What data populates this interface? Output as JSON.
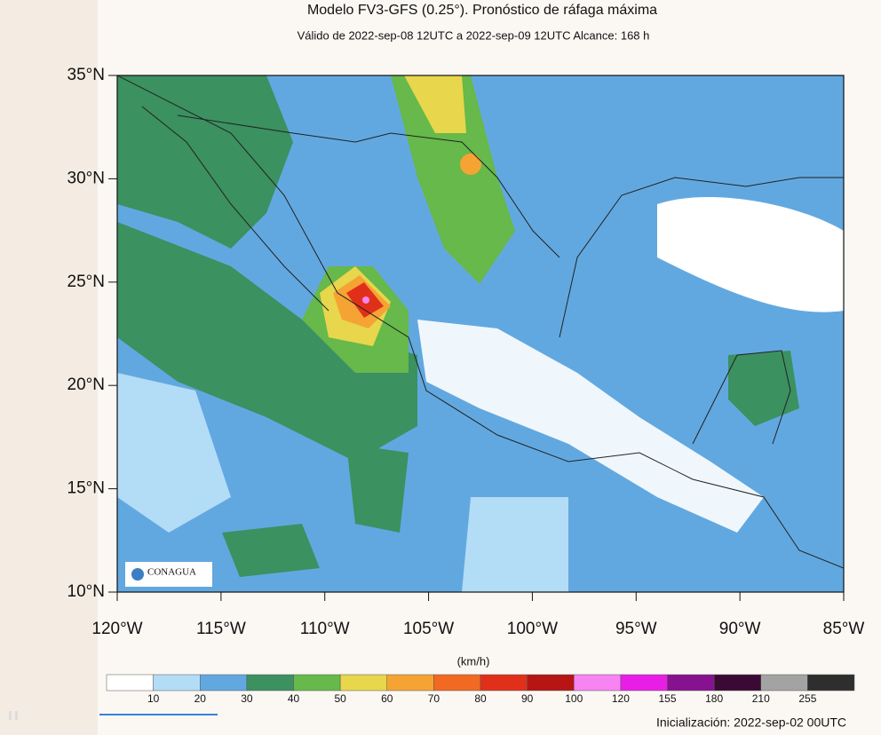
{
  "header": {
    "title": "Modelo FV3-GFS (0.25°). Pronóstico de ráfaga máxima",
    "subtitle": "Válido de 2022-sep-08 12UTC a 2022-sep-09 12UTC    Alcance: 168 h"
  },
  "map": {
    "lat_labels": [
      "35°N",
      "30°N",
      "25°N",
      "20°N",
      "15°N",
      "10°N"
    ],
    "lon_labels": [
      "120°W",
      "115°W",
      "110°W",
      "105°W",
      "100°W",
      "95°W",
      "90°W",
      "85°W"
    ],
    "logo": "CONAGUA"
  },
  "colorbar": {
    "unit": "(km/h)",
    "colors": [
      "#ffffff",
      "#b3dcf6",
      "#62a8e0",
      "#3b9160",
      "#66b94a",
      "#e8d64c",
      "#f5a434",
      "#f26a22",
      "#e1301a",
      "#b71414",
      "#f784f2",
      "#e81ee6",
      "#87128f",
      "#3a0a34",
      "#a3a3a3",
      "#2e2e2e"
    ],
    "ticks": [
      10,
      20,
      30,
      40,
      50,
      60,
      70,
      80,
      90,
      100,
      120,
      155,
      180,
      210,
      255
    ]
  },
  "footer": {
    "init": "Inicialización: 2022-sep-02 00UTC"
  }
}
